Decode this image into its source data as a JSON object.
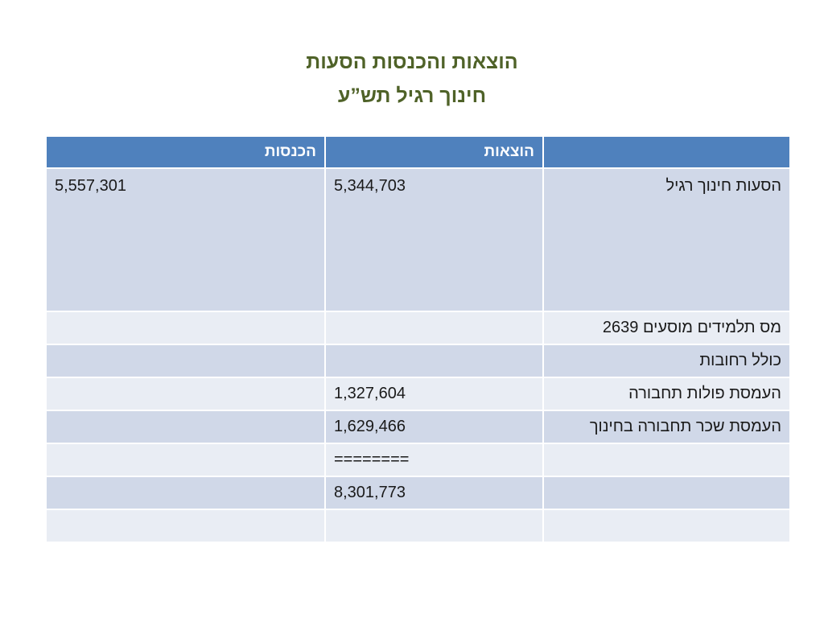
{
  "title": {
    "line1": "הוצאות והכנסות הסעות",
    "line2": "חינוך רגיל תש”ע"
  },
  "table": {
    "headers": [
      "",
      "הוצאות",
      "הכנסות"
    ],
    "rows": [
      {
        "label": "הסעות חינוך רגיל",
        "expenses": "5,344,703",
        "income": "5,557,301"
      },
      {
        "label": "מס תלמידים מוסעים 2639",
        "expenses": "",
        "income": ""
      },
      {
        "label": "כולל רחובות",
        "expenses": "",
        "income": ""
      },
      {
        "label": "העמסת פולות תחבורה",
        "expenses": "1,327,604",
        "income": ""
      },
      {
        "label": "העמסת שכר תחבורה בחינוך",
        "expenses": "1,629,466",
        "income": ""
      },
      {
        "label": "",
        "expenses": "========",
        "income": ""
      },
      {
        "label": "",
        "expenses": "8,301,773",
        "income": ""
      },
      {
        "label": "",
        "expenses": "",
        "income": ""
      }
    ]
  }
}
